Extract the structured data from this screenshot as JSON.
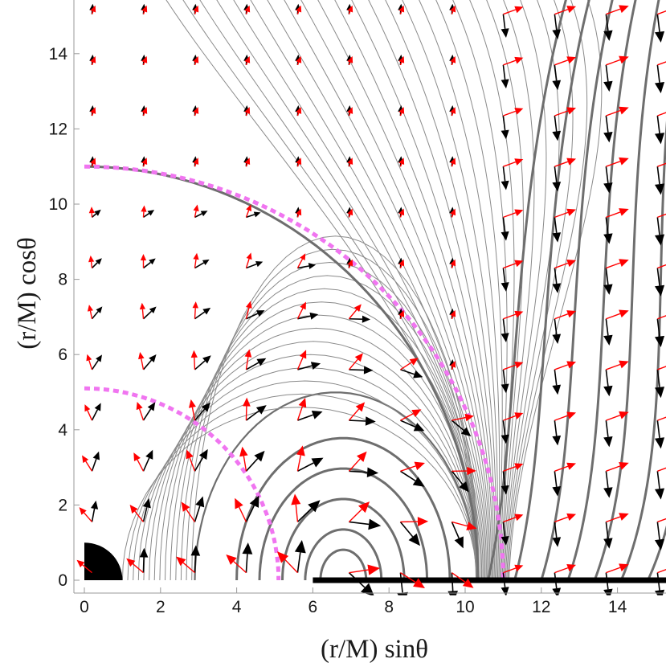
{
  "chart_data": {
    "type": "vector-field",
    "title": "",
    "xlabel": "(r/M) sinθ",
    "ylabel": "(r/M) cosθ",
    "xlim": [
      0,
      15.3
    ],
    "ylim": [
      0,
      15.3
    ],
    "x_ticks": [
      0,
      2,
      4,
      6,
      8,
      10,
      12,
      14
    ],
    "y_ticks": [
      0,
      2,
      4,
      6,
      8,
      10,
      12,
      14
    ],
    "grid": false,
    "legend": "none",
    "black_hole": {
      "radius": 1.0,
      "color": "#000000"
    },
    "disk": {
      "r_inner": 6.0,
      "r_outer": 15.3,
      "color": "#000000"
    },
    "dashed_circles": [
      {
        "radius": 5.1,
        "color": "#f075f0"
      },
      {
        "radius": 11.0,
        "color": "#f075f0"
      }
    ],
    "closed_loops": {
      "center": [
        6.8,
        0
      ],
      "x_extents": [
        [
          2.9,
          10.3
        ],
        [
          4.0,
          9.6
        ],
        [
          4.6,
          9.0
        ],
        [
          5.2,
          8.4
        ],
        [
          5.8,
          7.8
        ],
        [
          6.2,
          7.4
        ]
      ],
      "color": "#6e6e6e"
    },
    "outer_lines": {
      "footpoints": [
        10.6,
        11.3,
        12.0,
        12.7,
        13.4,
        14.1,
        14.8
      ],
      "color": "#6e6e6e"
    },
    "separatrix": {
      "radius": 11.0,
      "footpoint": 10.4,
      "color": "#6e6e6e"
    },
    "vector_colors": {
      "primary": "#000000",
      "secondary": "#ff0000"
    }
  }
}
